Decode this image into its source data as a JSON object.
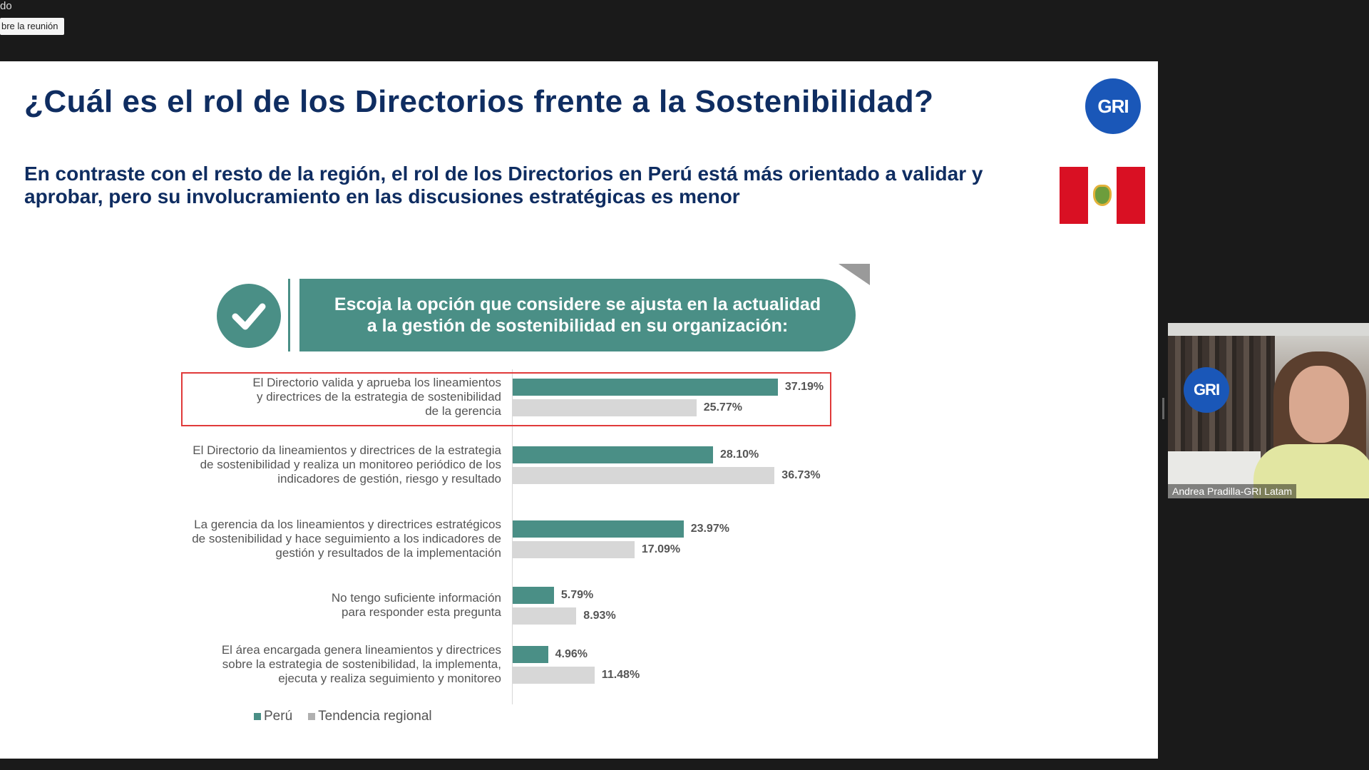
{
  "meeting": {
    "status_text": "do",
    "info_button": "bre la reunión"
  },
  "slide": {
    "title": "¿Cuál es el rol de los Directorios frente a la Sostenibilidad?",
    "logo_text": "GRI",
    "subtitle": "En contraste con el resto de la región, el rol de los Directorios en Perú está más orientado a validar y aprobar, pero su involucramiento en las discusiones estratégicas es menor",
    "question": "Escoja la opción que considere se ajusta en la actualidad\na la gestión de sostenibilidad en su organización:"
  },
  "chart_data": {
    "type": "bar",
    "orientation": "horizontal",
    "categories": [
      "El Directorio valida y aprueba los lineamientos\ny directrices de la estrategia de sostenibilidad\nde la gerencia",
      "El Directorio da lineamientos y directrices de la estrategia\nde sostenibilidad y realiza un monitoreo periódico de los\nindicadores de gestión, riesgo y resultado",
      "La gerencia da los lineamientos y directrices estratégicos\nde sostenibilidad y hace seguimiento a los indicadores de\ngestión y resultados de la implementación",
      "No tengo suficiente información\npara responder esta pregunta",
      "El área encargada genera lineamientos y directrices\nsobre la estrategia de sostenibilidad, la implementa,\nejecuta y realiza seguimiento y monitoreo"
    ],
    "series": [
      {
        "name": "Perú",
        "color": "#4a8f86",
        "values": [
          37.19,
          28.1,
          23.97,
          5.79,
          4.96
        ],
        "labels": [
          "37.19%",
          "28.10%",
          "23.97%",
          "5.79%",
          "4.96%"
        ]
      },
      {
        "name": "Tendencia regional",
        "color": "#d7d7d7",
        "values": [
          25.77,
          36.73,
          17.09,
          8.93,
          11.48
        ],
        "labels": [
          "25.77%",
          "36.73%",
          "17.09%",
          "8.93%",
          "11.48%"
        ]
      }
    ],
    "highlighted_category": 0,
    "legend_position": "bottom-left"
  },
  "video_tile": {
    "participant_name": "Andrea Pradilla-GRI Latam",
    "logo_text": "GRI"
  }
}
